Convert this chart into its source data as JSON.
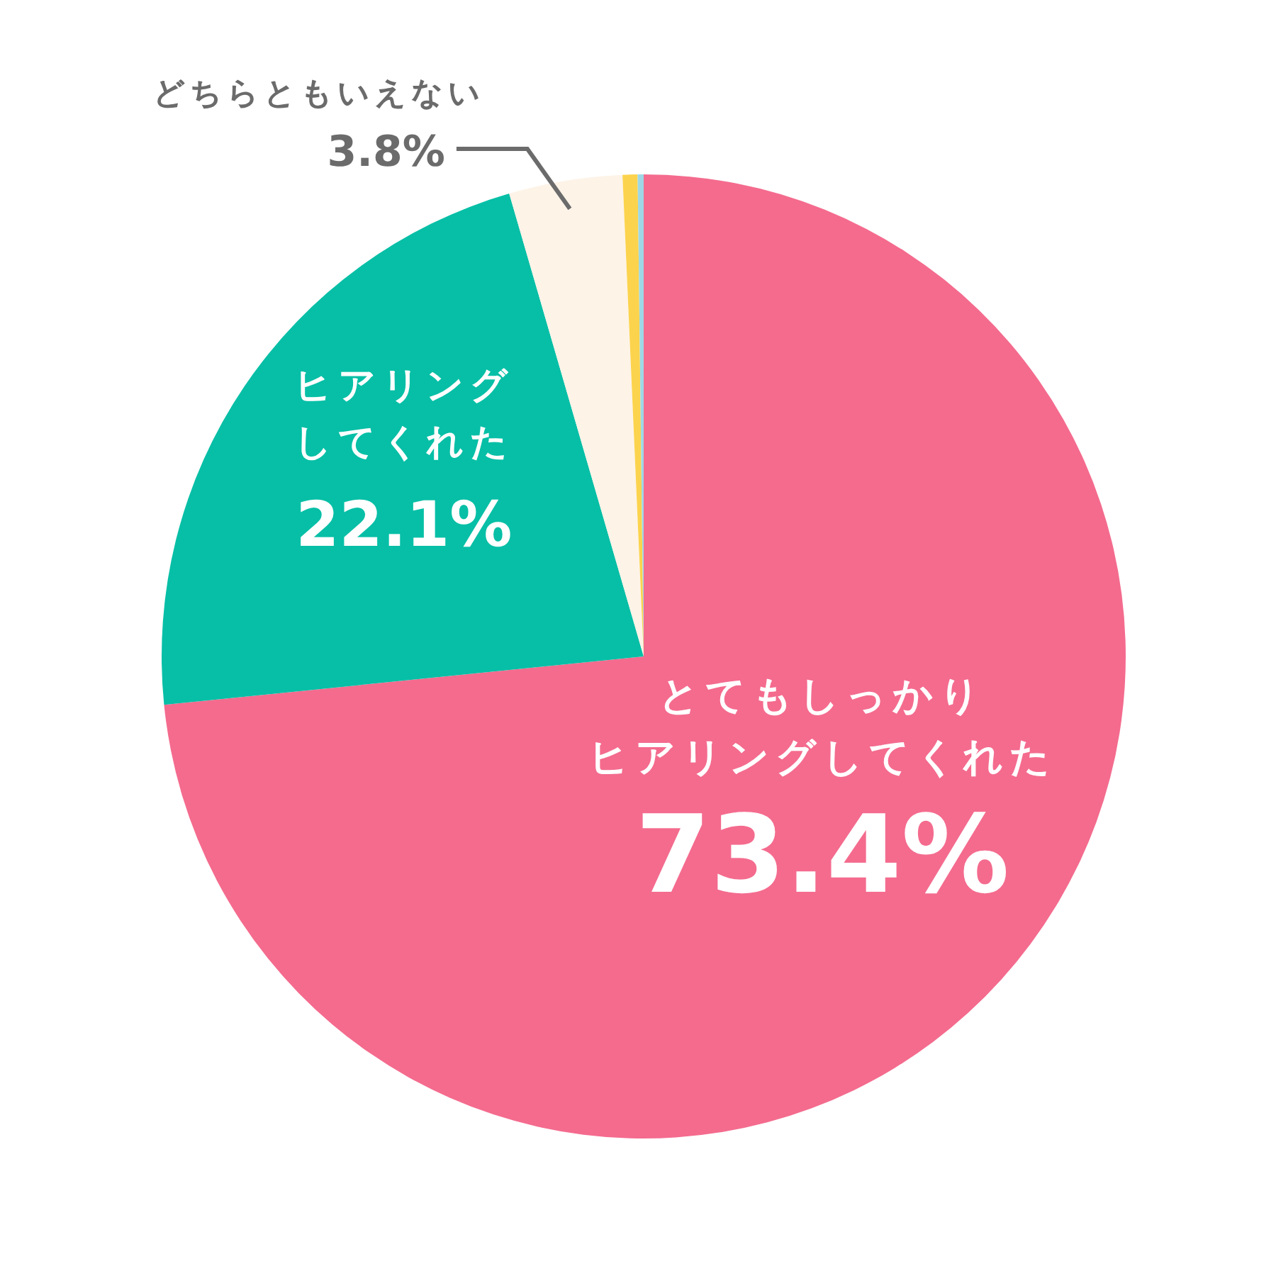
{
  "chart_data": {
    "type": "pie",
    "categories": [
      "とてもしっかりヒアリングしてくれた",
      "ヒアリングしてくれた",
      "どちらともいえない",
      null,
      null
    ],
    "values": [
      73.4,
      22.1,
      3.8,
      0.5,
      0.2
    ],
    "colors": [
      "#f46b8e",
      "#06bfa6",
      "#fdf3e7",
      "#fcd34d",
      "#9ed8e6"
    ],
    "value_labels": [
      "73.4%",
      "22.1%",
      "3.8%",
      null,
      null
    ]
  }
}
